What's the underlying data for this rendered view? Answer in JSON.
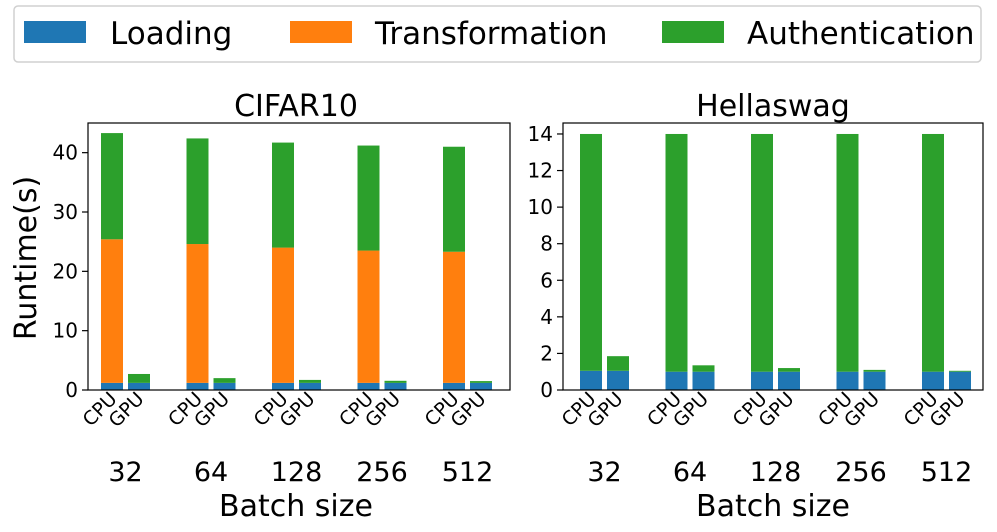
{
  "legend": {
    "items": [
      {
        "label": "Loading",
        "color": "#1f77b4"
      },
      {
        "label": "Transformation",
        "color": "#ff7f0e"
      },
      {
        "label": "Authentication",
        "color": "#2ca02c"
      }
    ]
  },
  "chart_data": [
    {
      "type": "bar",
      "stacked": true,
      "title": "CIFAR10",
      "xlabel": "Batch size",
      "ylabel": "Runtime(s)",
      "ylim": [
        0,
        45
      ],
      "yticks": [
        0,
        10,
        20,
        30,
        40
      ],
      "groups": [
        "32",
        "64",
        "128",
        "256",
        "512"
      ],
      "bar_labels": [
        "CPU",
        "GPU"
      ],
      "series": [
        {
          "name": "Loading",
          "color": "#1f77b4",
          "CPU": [
            1.2,
            1.2,
            1.2,
            1.2,
            1.2
          ],
          "GPU": [
            1.2,
            1.2,
            1.2,
            1.2,
            1.2
          ]
        },
        {
          "name": "Transformation",
          "color": "#ff7f0e",
          "CPU": [
            24.2,
            23.4,
            22.8,
            22.3,
            22.1
          ],
          "GPU": [
            0,
            0,
            0,
            0,
            0
          ]
        },
        {
          "name": "Authentication",
          "color": "#2ca02c",
          "CPU": [
            17.9,
            17.8,
            17.7,
            17.7,
            17.7
          ],
          "GPU": [
            1.5,
            0.8,
            0.5,
            0.35,
            0.3
          ]
        }
      ]
    },
    {
      "type": "bar",
      "stacked": true,
      "title": "Hellaswag",
      "xlabel": "Batch size",
      "ylabel": "",
      "ylim": [
        0,
        14.6
      ],
      "yticks": [
        0,
        2,
        4,
        6,
        8,
        10,
        12,
        14
      ],
      "groups": [
        "32",
        "64",
        "128",
        "256",
        "512"
      ],
      "bar_labels": [
        "CPU",
        "GPU"
      ],
      "series": [
        {
          "name": "Loading",
          "color": "#1f77b4",
          "CPU": [
            1.05,
            1.0,
            1.0,
            1.0,
            1.0
          ],
          "GPU": [
            1.05,
            1.0,
            1.0,
            1.0,
            1.0
          ]
        },
        {
          "name": "Transformation",
          "color": "#ff7f0e",
          "CPU": [
            0,
            0,
            0,
            0,
            0
          ],
          "GPU": [
            0,
            0,
            0,
            0,
            0
          ]
        },
        {
          "name": "Authentication",
          "color": "#2ca02c",
          "CPU": [
            12.95,
            13.0,
            13.0,
            13.0,
            13.0
          ],
          "GPU": [
            0.8,
            0.35,
            0.2,
            0.1,
            0.05
          ]
        }
      ]
    }
  ]
}
